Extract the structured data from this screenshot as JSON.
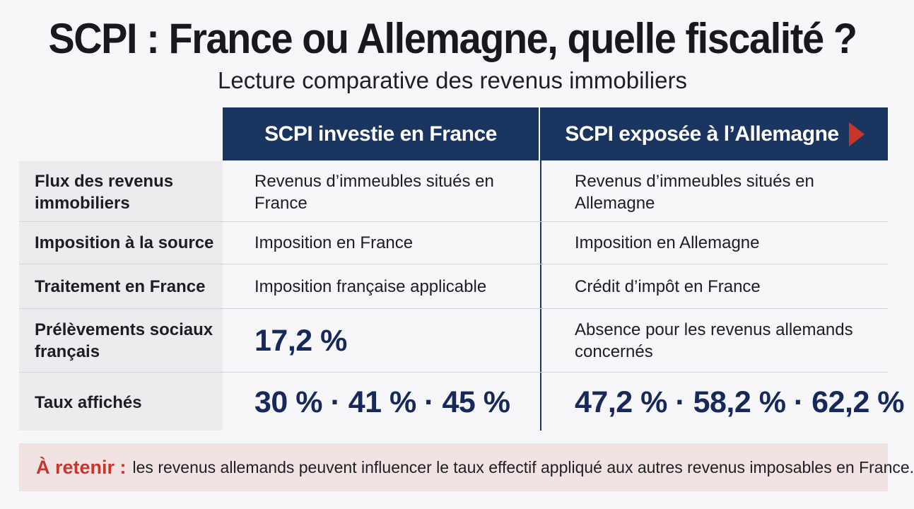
{
  "header": {
    "title": "SCPI : France ou Allemagne, quelle fiscalité ?",
    "subtitle": "Lecture comparative des revenus immobiliers"
  },
  "table": {
    "columns": {
      "france": "SCPI investie en France",
      "germany": "SCPI exposée à l’Allemagne"
    },
    "rows": [
      {
        "label": "Flux des revenus immobiliers",
        "france": "Revenus d’immeubles situés en France",
        "germany": "Revenus d’immeubles situés en Allemagne"
      },
      {
        "label": "Imposition à la source",
        "france": "Imposition en France",
        "germany": "Imposition en Allemagne"
      },
      {
        "label": "Traitement en France",
        "france": "Imposition française applicable",
        "germany": "Crédit d’impôt en France"
      },
      {
        "label": "Prélèvements sociaux français",
        "france": "17,2 %",
        "germany": "Absence pour les revenus allemands concernés"
      },
      {
        "label": "Taux affichés",
        "france": "30 % · 41 % · 45 %",
        "germany": "47,2 % · 58,2 % · 62,2 %"
      }
    ]
  },
  "callout": {
    "label": "À retenir :",
    "text": "les revenus allemands peuvent influencer le taux effectif appliqué aux autres revenus imposables en France."
  },
  "colors": {
    "header_navy": "#1b3561",
    "accent_red": "#c8352b",
    "callout_bg": "#f2e3e3"
  },
  "icons": {
    "header_arrow": "arrow-right-icon"
  }
}
